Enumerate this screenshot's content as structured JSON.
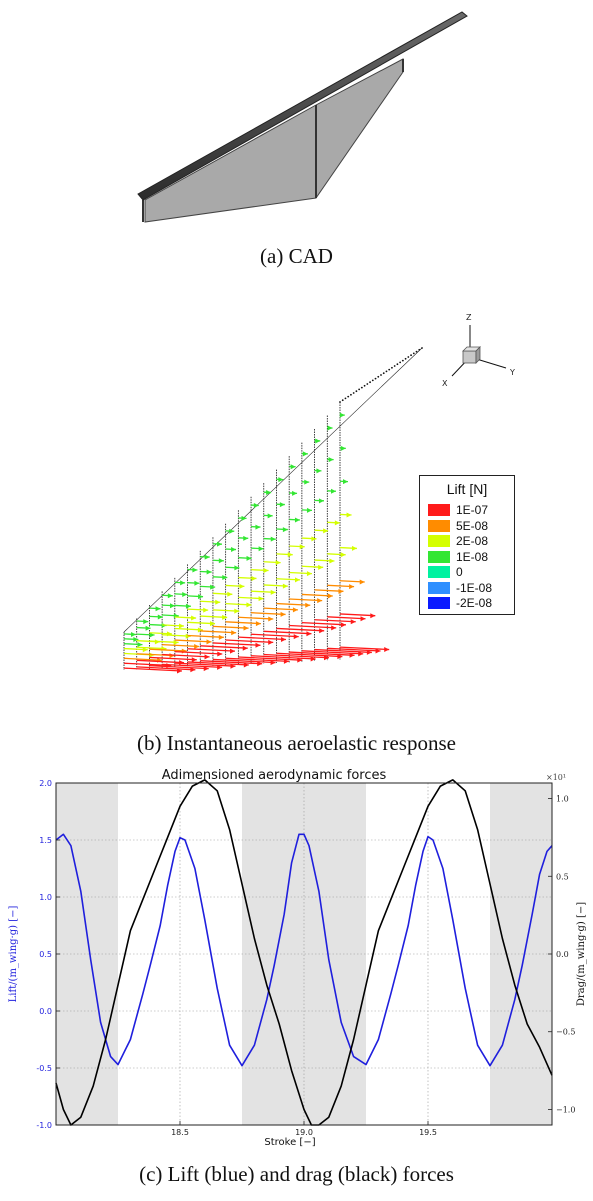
{
  "captions": {
    "a": "(a) CAD",
    "b": "(b) Instantaneous aeroelastic response",
    "c": "(c) Lift (blue) and drag (black) forces"
  },
  "axes_triad": {
    "z": "Z",
    "x": "X",
    "y": "Y"
  },
  "legend": {
    "title": "Lift [N]",
    "entries": [
      {
        "label": "1E-07",
        "color": "#ff1a1a"
      },
      {
        "label": "5E-08",
        "color": "#ff8c00"
      },
      {
        "label": "2E-08",
        "color": "#d4ff00"
      },
      {
        "label": "1E-08",
        "color": "#33e633"
      },
      {
        "label": "0",
        "color": "#00f2a0"
      },
      {
        "label": "-1E-08",
        "color": "#2f8fff"
      },
      {
        "label": "-2E-08",
        "color": "#0a1aff"
      }
    ]
  },
  "chart_data": {
    "type": "line",
    "title": "Adimensioned aerodynamic forces",
    "xlabel": "Stroke [−]",
    "ylabel_left": "Lift/(m_wing·g) [−]",
    "ylabel_right": "Drag/(m_wing·g) [−]",
    "right_multiplier": "×10¹",
    "xlim": [
      18.0,
      20.0
    ],
    "ylim_left": [
      -1.0,
      2.0
    ],
    "ylim_right": [
      -1.1,
      1.1
    ],
    "x_ticks": [
      "18.5",
      "19.0",
      "19.5"
    ],
    "y_ticks_left": [
      "2.0",
      "1.5",
      "1.0",
      "0.5",
      "0.0",
      "-0.5",
      "-1.0"
    ],
    "y_ticks_right": [
      "1.0",
      "0.5",
      "0.0",
      "−0.5",
      "−1.0"
    ],
    "grid": true,
    "shaded_x_ranges": [
      [
        18.0,
        18.25
      ],
      [
        18.75,
        19.25
      ],
      [
        19.75,
        20.0
      ]
    ],
    "series": [
      {
        "color": "#1f1fdd",
        "axis": "left",
        "x": [
          18.0,
          18.03,
          18.06,
          18.1,
          18.14,
          18.18,
          18.22,
          18.25,
          18.3,
          18.35,
          18.38,
          18.42,
          18.45,
          18.48,
          18.5,
          18.52,
          18.56,
          18.6,
          18.65,
          18.7,
          18.75,
          18.8,
          18.85,
          18.88,
          18.92,
          18.95,
          18.98,
          19.0,
          19.02,
          19.06,
          19.1,
          19.15,
          19.2,
          19.25,
          19.3,
          19.35,
          19.38,
          19.42,
          19.45,
          19.48,
          19.5,
          19.52,
          19.56,
          19.6,
          19.65,
          19.7,
          19.75,
          19.8,
          19.85,
          19.88,
          19.92,
          19.95,
          19.98,
          20.0
        ],
        "y": [
          1.5,
          1.55,
          1.45,
          1.05,
          0.45,
          -0.1,
          -0.4,
          -0.47,
          -0.25,
          0.15,
          0.4,
          0.75,
          1.1,
          1.4,
          1.52,
          1.5,
          1.25,
          0.8,
          0.2,
          -0.3,
          -0.48,
          -0.3,
          0.1,
          0.4,
          0.85,
          1.3,
          1.55,
          1.55,
          1.45,
          1.05,
          0.45,
          -0.1,
          -0.4,
          -0.47,
          -0.25,
          0.15,
          0.4,
          0.75,
          1.1,
          1.4,
          1.53,
          1.5,
          1.25,
          0.8,
          0.2,
          -0.3,
          -0.48,
          -0.3,
          0.1,
          0.4,
          0.85,
          1.2,
          1.4,
          1.45
        ]
      },
      {
        "color": "#000000",
        "axis": "right",
        "x": [
          18.0,
          18.03,
          18.06,
          18.1,
          18.15,
          18.2,
          18.25,
          18.3,
          18.35,
          18.4,
          18.45,
          18.5,
          18.55,
          18.6,
          18.65,
          18.7,
          18.75,
          18.8,
          18.85,
          18.9,
          18.95,
          19.0,
          19.03,
          19.06,
          19.1,
          19.15,
          19.2,
          19.25,
          19.3,
          19.35,
          19.4,
          19.45,
          19.5,
          19.55,
          19.6,
          19.65,
          19.7,
          19.75,
          19.8,
          19.85,
          19.9,
          19.95,
          20.0
        ],
        "y": [
          -0.83,
          -1.0,
          -1.1,
          -1.05,
          -0.85,
          -0.55,
          -0.2,
          0.15,
          0.35,
          0.55,
          0.75,
          0.95,
          1.08,
          1.12,
          1.05,
          0.8,
          0.45,
          0.1,
          -0.2,
          -0.45,
          -0.75,
          -1.0,
          -1.1,
          -1.1,
          -1.05,
          -0.85,
          -0.55,
          -0.2,
          0.15,
          0.35,
          0.55,
          0.75,
          0.95,
          1.08,
          1.12,
          1.05,
          0.8,
          0.45,
          0.1,
          -0.2,
          -0.45,
          -0.6,
          -0.78
        ]
      }
    ]
  }
}
